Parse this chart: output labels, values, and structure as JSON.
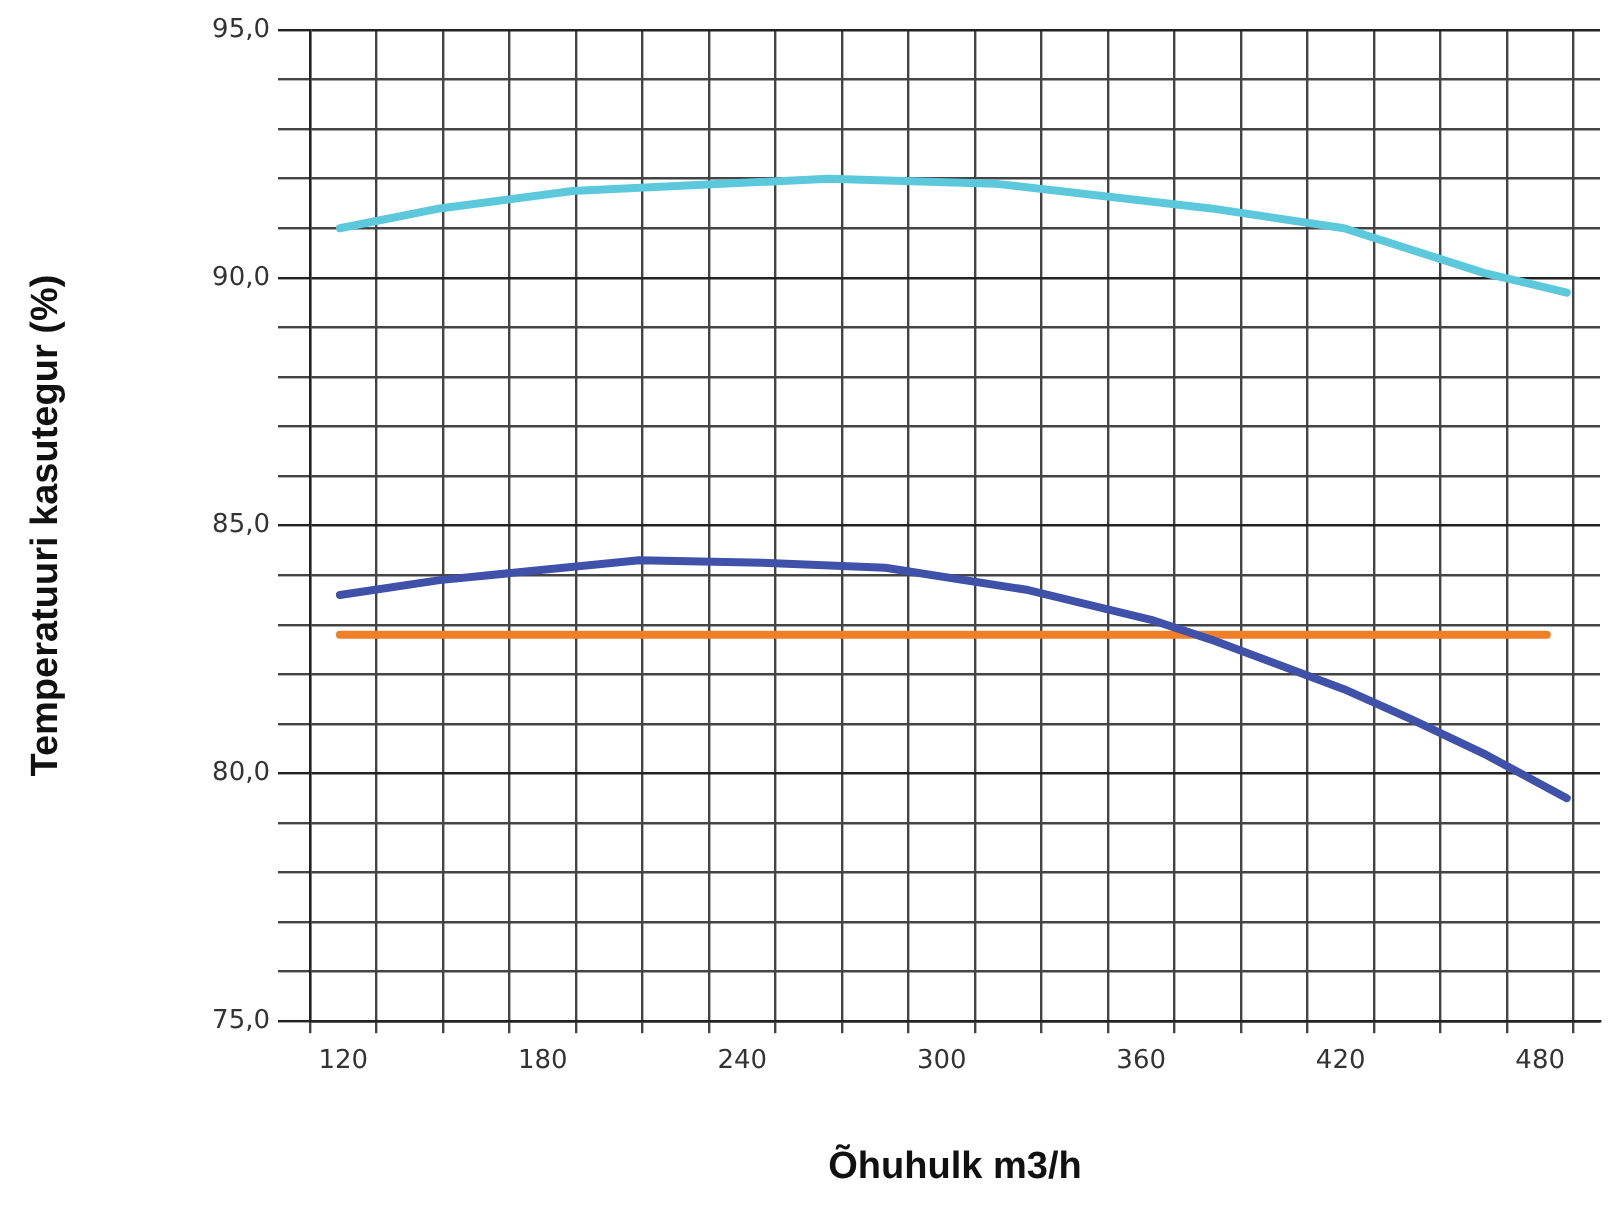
{
  "chart_data": {
    "type": "line",
    "xlabel": "Õhuhulk m3/h",
    "ylabel": "Temperatuuri kasutegur (%)",
    "xlim": [
      110,
      498
    ],
    "xticks": [
      {
        "value": 110,
        "label": null
      },
      120,
      {
        "value": 130,
        "label": null
      },
      {
        "value": 150,
        "label": null
      },
      {
        "value": 170,
        "label": null
      },
      180,
      {
        "value": 190,
        "label": null
      },
      {
        "value": 210,
        "label": null
      },
      {
        "value": 230,
        "label": null
      },
      240,
      {
        "value": 250,
        "label": null
      },
      {
        "value": 270,
        "label": null
      },
      {
        "value": 290,
        "label": null
      },
      300,
      {
        "value": 310,
        "label": null
      },
      {
        "value": 330,
        "label": null
      },
      {
        "value": 350,
        "label": null
      },
      360,
      {
        "value": 370,
        "label": null
      },
      {
        "value": 390,
        "label": null
      },
      {
        "value": 410,
        "label": null
      },
      420,
      {
        "value": 430,
        "label": null
      },
      {
        "value": 450,
        "label": null
      },
      {
        "value": 470,
        "label": null
      },
      480,
      {
        "value": 490,
        "label": null
      }
    ],
    "ylim": [
      75,
      95
    ],
    "yticks": [
      {
        "value": 75,
        "label": "75,0"
      },
      {
        "value": 76,
        "label": null
      },
      {
        "value": 77,
        "label": null
      },
      {
        "value": 78,
        "label": null
      },
      {
        "value": 79,
        "label": null
      },
      {
        "value": 80,
        "label": "80,0"
      },
      {
        "value": 81,
        "label": null
      },
      {
        "value": 82,
        "label": null
      },
      {
        "value": 83,
        "label": null
      },
      {
        "value": 84,
        "label": null
      },
      {
        "value": 85,
        "label": "85,0"
      },
      {
        "value": 86,
        "label": null
      },
      {
        "value": 87,
        "label": null
      },
      {
        "value": 88,
        "label": null
      },
      {
        "value": 89,
        "label": null
      },
      {
        "value": 90,
        "label": "90,0"
      },
      {
        "value": 91,
        "label": null
      },
      {
        "value": 92,
        "label": null
      },
      {
        "value": 93,
        "label": null
      },
      {
        "value": 94,
        "label": null
      },
      {
        "value": 95,
        "label": "95,0"
      }
    ],
    "grid": true,
    "legend": false,
    "marker": "none",
    "line_style": "solid",
    "series": [
      {
        "color": "#5bc8dc",
        "x": [
          119,
          149,
          189,
          266,
          316,
          381,
          421,
          463,
          488
        ],
        "values": [
          91.0,
          91.4,
          91.75,
          92.0,
          91.9,
          91.4,
          91.0,
          90.1,
          89.7
        ]
      },
      {
        "color": "#3f51a8",
        "x": [
          119,
          149,
          209,
          246,
          283,
          326,
          363,
          381,
          421,
          441,
          463,
          488
        ],
        "values": [
          83.6,
          83.9,
          84.3,
          84.25,
          84.15,
          83.7,
          83.1,
          82.7,
          81.7,
          81.1,
          80.4,
          79.5
        ]
      },
      {
        "color": "#f07f28",
        "x": [
          119,
          482
        ],
        "values": [
          82.8,
          82.8
        ]
      }
    ]
  }
}
